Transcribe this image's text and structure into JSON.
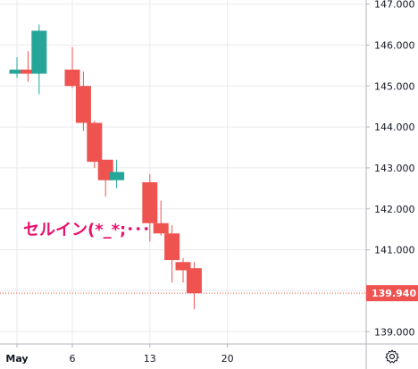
{
  "chart_data": {
    "type": "candlestick",
    "ylim": [
      138.7,
      147.1
    ],
    "y_ticks": [
      "139.000",
      "140.000",
      "141.000",
      "142.000",
      "143.000",
      "144.000",
      "145.000",
      "146.000",
      "147.000"
    ],
    "x_ticks": [
      {
        "label": "May",
        "day": 1,
        "bold": true
      },
      {
        "label": "6",
        "day": 6,
        "bold": false
      },
      {
        "label": "13",
        "day": 13,
        "bold": false
      },
      {
        "label": "20",
        "day": 20,
        "bold": false
      }
    ],
    "grid": true,
    "candles": [
      {
        "day": 1,
        "open": 145.3,
        "high": 145.7,
        "low": 145.2,
        "close": 145.4
      },
      {
        "day": 2,
        "open": 145.4,
        "high": 145.85,
        "low": 145.1,
        "close": 145.3
      },
      {
        "day": 3,
        "open": 145.3,
        "high": 146.5,
        "low": 144.8,
        "close": 146.35
      },
      {
        "day": 6,
        "open": 145.4,
        "high": 145.95,
        "low": 144.95,
        "close": 145.0
      },
      {
        "day": 7,
        "open": 145.0,
        "high": 145.35,
        "low": 143.9,
        "close": 144.1
      },
      {
        "day": 8,
        "open": 144.1,
        "high": 144.15,
        "low": 143.0,
        "close": 143.15
      },
      {
        "day": 9,
        "open": 143.2,
        "high": 143.2,
        "low": 142.3,
        "close": 142.7
      },
      {
        "day": 10,
        "open": 142.7,
        "high": 143.2,
        "low": 142.5,
        "close": 142.9
      },
      {
        "day": 13,
        "open": 142.65,
        "high": 142.85,
        "low": 141.2,
        "close": 141.65
      },
      {
        "day": 14,
        "open": 141.65,
        "high": 142.2,
        "low": 141.35,
        "close": 141.4
      },
      {
        "day": 15,
        "open": 141.4,
        "high": 141.6,
        "low": 140.2,
        "close": 140.75
      },
      {
        "day": 16,
        "open": 140.7,
        "high": 140.8,
        "low": 140.2,
        "close": 140.5
      },
      {
        "day": 17,
        "open": 140.55,
        "high": 140.7,
        "low": 139.55,
        "close": 139.94
      }
    ],
    "last_price": "139.940",
    "annotation": "セルイン(*_*;･･･",
    "colors": {
      "up": "#26a69a",
      "down": "#ef5350",
      "price_tag": "#ef5350",
      "grid": "#e8eaee",
      "axis": "#b2b5be",
      "annotation": "#e8106e"
    }
  }
}
